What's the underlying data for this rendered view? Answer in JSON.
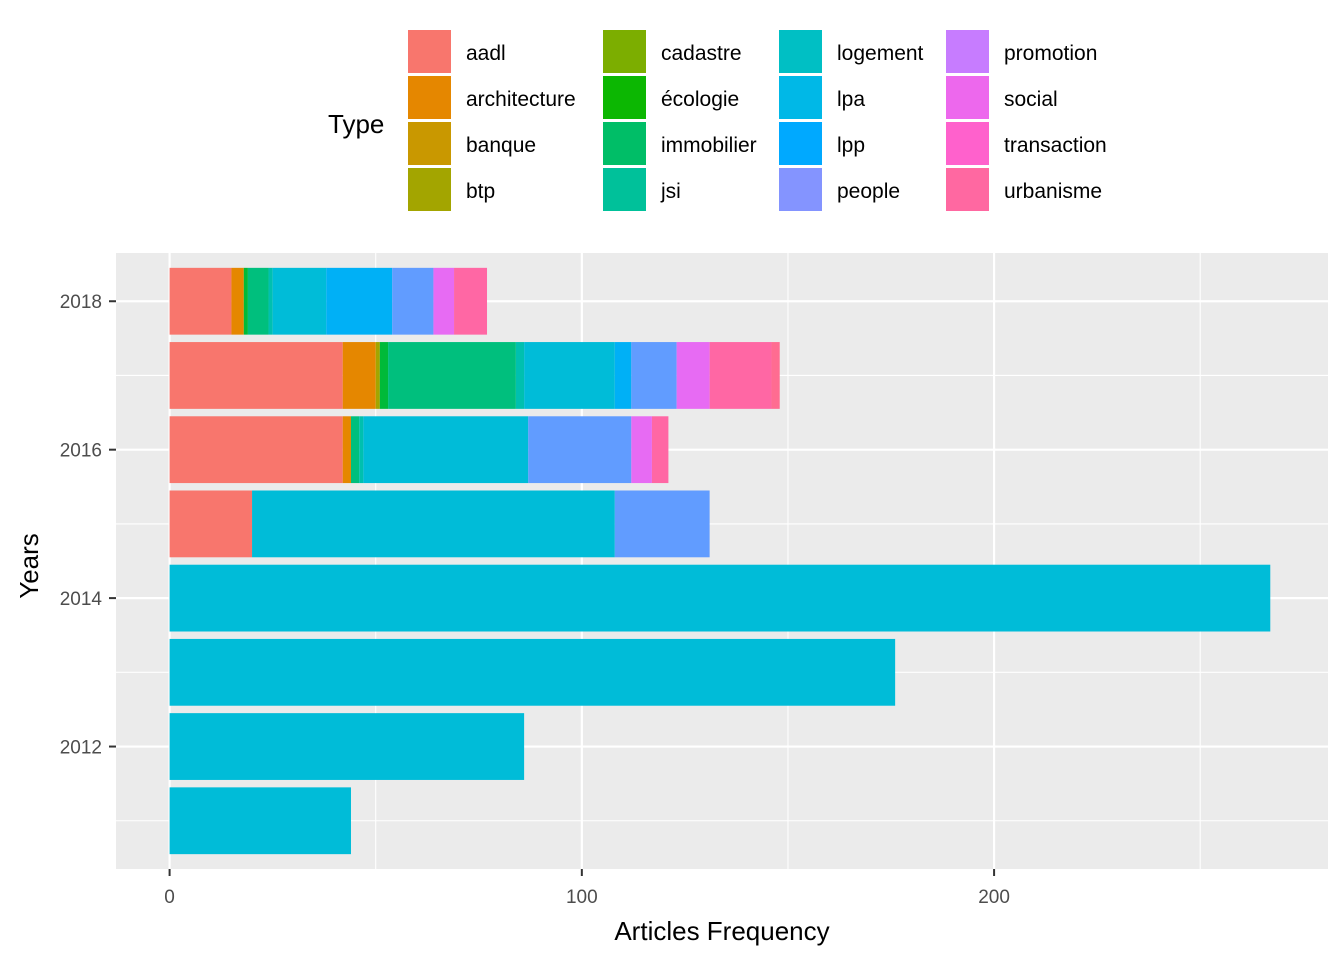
{
  "chart_data": {
    "type": "bar",
    "orientation": "horizontal",
    "stacked": true,
    "xlabel": "Articles Frequency",
    "ylabel": "Years",
    "xlim": [
      -13,
      281
    ],
    "ylim": [
      2010.35,
      2018.65
    ],
    "x_ticks": [
      0,
      100,
      200
    ],
    "x_minor_ticks": [
      50,
      150,
      250
    ],
    "y_ticks": [
      2012,
      2014,
      2016,
      2018
    ],
    "y_minor_ticks": [
      2011,
      2013,
      2015,
      2017
    ],
    "grid": true,
    "legend": {
      "title": "Type",
      "position": "top",
      "columns": 4
    },
    "categories": [
      "aadl",
      "architecture",
      "banque",
      "btp",
      "cadastre",
      "écologie",
      "immobilier",
      "jsi",
      "logement",
      "lpa",
      "lpp",
      "people",
      "promotion",
      "social",
      "transaction",
      "urbanisme"
    ],
    "colors": [
      "#F8766D",
      "#E58700",
      "#C99800",
      "#A3A500",
      "#6BB100",
      "#00BA38",
      "#00BF7D",
      "#00C0AF",
      "#00BCD8",
      "#00B0F6",
      "#619CFF",
      "#B983FF",
      "#E76BF3",
      "#FD61D1",
      "#FF67A4",
      "#FF6C91"
    ],
    "legend_colors": {
      "aadl": "#F8766D",
      "architecture": "#E58700",
      "banque": "#C99800",
      "btp": "#A3A500",
      "cadastre": "#7CAE00",
      "écologie": "#0CB702",
      "immobilier": "#00BE67",
      "jsi": "#00C19A",
      "logement": "#00BFC4",
      "lpa": "#00B8E7",
      "lpp": "#00A9FF",
      "people": "#8494FF",
      "promotion": "#C77CFF",
      "social": "#ED68ED",
      "transaction": "#FF61CC",
      "urbanisme": "#FF68A1"
    },
    "years": [
      2011,
      2012,
      2013,
      2014,
      2015,
      2016,
      2017,
      2018
    ],
    "stacks": [
      {
        "year": 2011,
        "segments": [
          {
            "type": "logement",
            "value": 44
          }
        ]
      },
      {
        "year": 2012,
        "segments": [
          {
            "type": "logement",
            "value": 86
          }
        ]
      },
      {
        "year": 2013,
        "segments": [
          {
            "type": "logement",
            "value": 176
          }
        ]
      },
      {
        "year": 2014,
        "segments": [
          {
            "type": "logement",
            "value": 267
          }
        ]
      },
      {
        "year": 2015,
        "segments": [
          {
            "type": "aadl",
            "value": 20
          },
          {
            "type": "logement",
            "value": 88
          },
          {
            "type": "lpp",
            "value": 23
          }
        ]
      },
      {
        "year": 2016,
        "segments": [
          {
            "type": "aadl",
            "value": 42
          },
          {
            "type": "architecture",
            "value": 2
          },
          {
            "type": "immobilier",
            "value": 2
          },
          {
            "type": "jsi",
            "value": 1
          },
          {
            "type": "logement",
            "value": 40
          },
          {
            "type": "lpp",
            "value": 25
          },
          {
            "type": "promotion",
            "value": 5
          },
          {
            "type": "transaction",
            "value": 4
          }
        ]
      },
      {
        "year": 2017,
        "segments": [
          {
            "type": "aadl",
            "value": 42
          },
          {
            "type": "architecture",
            "value": 8
          },
          {
            "type": "btp",
            "value": 1
          },
          {
            "type": "écologie",
            "value": 2
          },
          {
            "type": "immobilier",
            "value": 31
          },
          {
            "type": "jsi",
            "value": 2
          },
          {
            "type": "logement",
            "value": 22
          },
          {
            "type": "lpa",
            "value": 4
          },
          {
            "type": "lpp",
            "value": 11
          },
          {
            "type": "promotion",
            "value": 8
          },
          {
            "type": "transaction",
            "value": 15
          },
          {
            "type": "urbanisme",
            "value": 2
          }
        ]
      },
      {
        "year": 2018,
        "segments": [
          {
            "type": "aadl",
            "value": 15
          },
          {
            "type": "architecture",
            "value": 3
          },
          {
            "type": "écologie",
            "value": 1
          },
          {
            "type": "immobilier",
            "value": 5
          },
          {
            "type": "jsi",
            "value": 1
          },
          {
            "type": "logement",
            "value": 13
          },
          {
            "type": "lpa",
            "value": 16
          },
          {
            "type": "lpp",
            "value": 10
          },
          {
            "type": "promotion",
            "value": 5
          },
          {
            "type": "transaction",
            "value": 8
          }
        ]
      }
    ]
  }
}
